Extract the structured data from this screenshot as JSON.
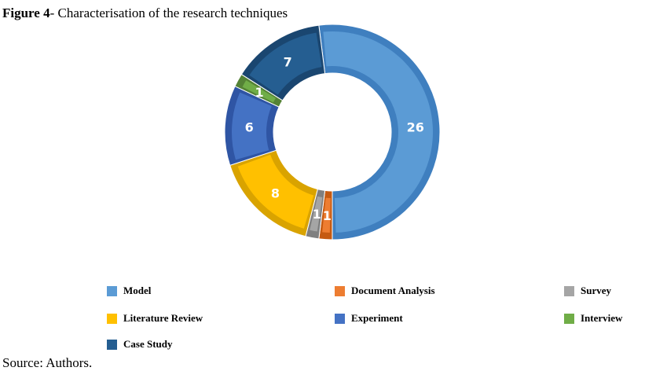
{
  "caption": {
    "prefix": "Figure 4",
    "text": "- Characterisation of the research techniques"
  },
  "source": "Source: Authors.",
  "chart_data": {
    "type": "pie",
    "variant": "donut",
    "title": "",
    "slices": [
      {
        "name": "Model",
        "value": 26,
        "label": "26",
        "color": "#5b9bd5",
        "dark": "#3f7fbf"
      },
      {
        "name": "Document Analysis",
        "value": 1,
        "label": "1",
        "color": "#ed7d31",
        "dark": "#c55a11"
      },
      {
        "name": "Survey",
        "value": 1,
        "label": "1",
        "color": "#a5a5a5",
        "dark": "#7f7f7f"
      },
      {
        "name": "Literature Review",
        "value": 8,
        "label": "8",
        "color": "#ffc000",
        "dark": "#d9a300"
      },
      {
        "name": "Experiment",
        "value": 6,
        "label": "6",
        "color": "#4472c4",
        "dark": "#2f55a4"
      },
      {
        "name": "Interview",
        "value": 1,
        "label": "1",
        "color": "#70ad47",
        "dark": "#548235"
      },
      {
        "name": "Case Study",
        "value": 7,
        "label": "7",
        "color": "#255e91",
        "dark": "#1a4670"
      }
    ],
    "legend_position": "bottom"
  }
}
